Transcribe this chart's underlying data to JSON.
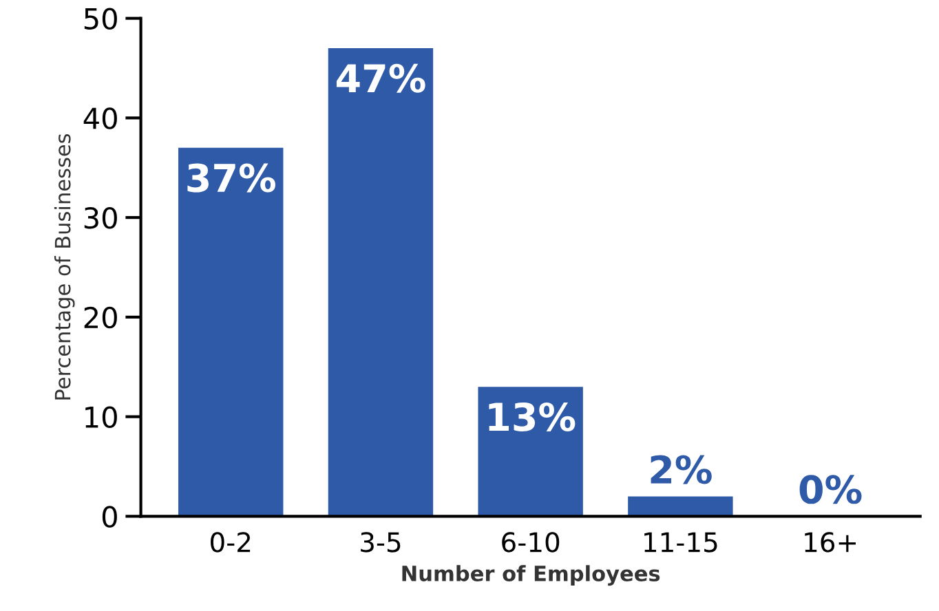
{
  "chart_data": {
    "type": "bar",
    "xlabel": "Number of Employees",
    "ylabel": "Percentage of Businesses",
    "categories": [
      "0-2",
      "3-5",
      "6-10",
      "11-15",
      "16+"
    ],
    "values": [
      37,
      47,
      13,
      2,
      0
    ],
    "value_labels": [
      "37%",
      "47%",
      "13%",
      "2%",
      "0%"
    ],
    "color": "#2f5aa8",
    "ylim": [
      0,
      50
    ],
    "yticks": [
      0,
      10,
      20,
      30,
      40,
      50
    ],
    "grid": false,
    "legend": false
  }
}
